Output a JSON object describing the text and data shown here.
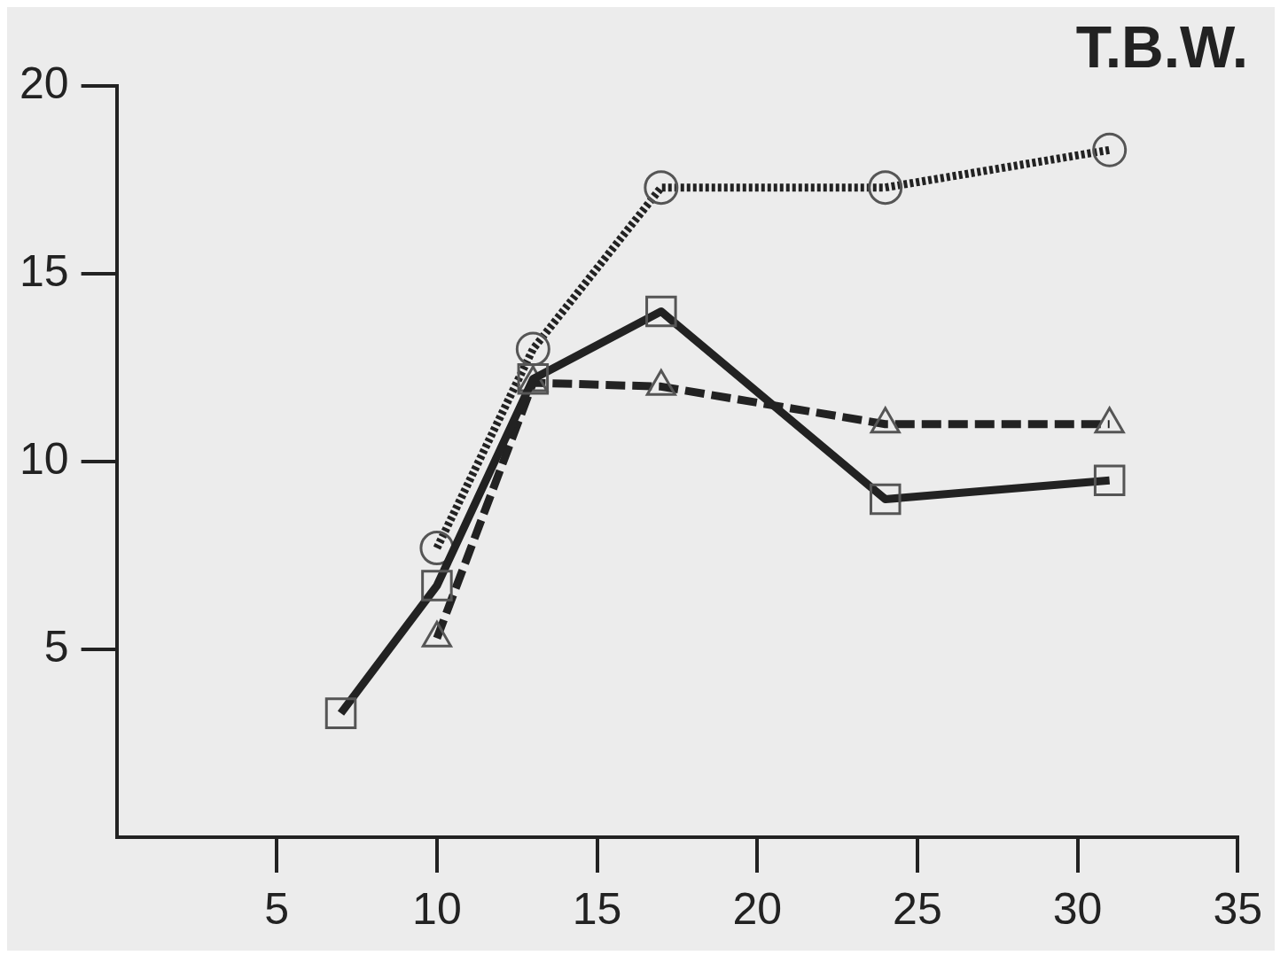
{
  "chart_data": {
    "type": "line",
    "title": "T.B.W.",
    "xlim": [
      0,
      35
    ],
    "xticks": [
      5,
      10,
      15,
      20,
      25,
      30,
      35
    ],
    "ylim": [
      0,
      20
    ],
    "yticks": [
      5,
      10,
      15,
      20
    ],
    "grid": false,
    "legend": false,
    "series": [
      {
        "color": "#222222",
        "marker": "circle",
        "line_style": "dotted",
        "x": [
          10,
          13,
          17,
          24,
          31
        ],
        "values": [
          7.7,
          13.0,
          17.3,
          17.3,
          18.3
        ]
      },
      {
        "color": "#222222",
        "marker": "square",
        "line_style": "solid",
        "x": [
          7,
          10,
          13,
          17,
          24,
          31
        ],
        "values": [
          3.3,
          6.7,
          12.2,
          14.0,
          9.0,
          9.5
        ]
      },
      {
        "color": "#222222",
        "marker": "triangle",
        "line_style": "dashed",
        "x": [
          10,
          13,
          17,
          24,
          31
        ],
        "values": [
          5.3,
          12.1,
          12.0,
          11.0,
          11.0
        ]
      }
    ]
  }
}
